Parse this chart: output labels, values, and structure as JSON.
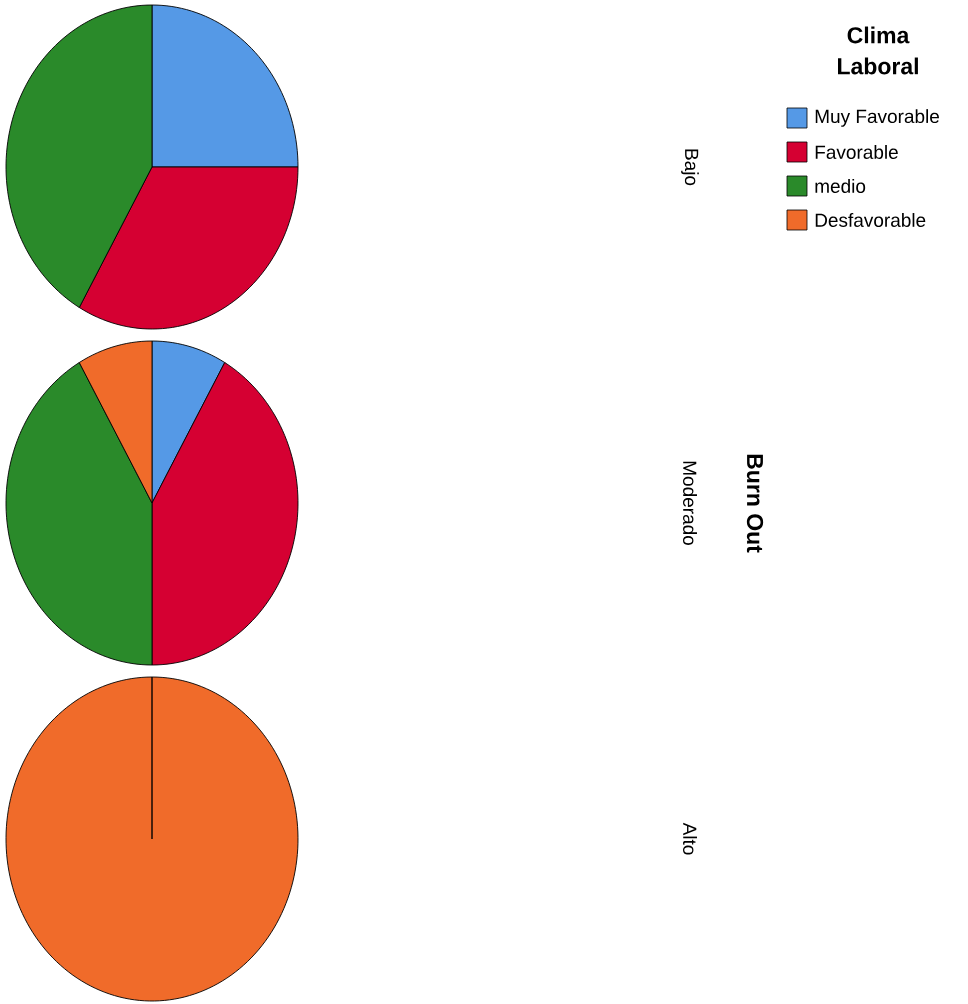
{
  "chart_data": {
    "type": "pie",
    "categories": [
      "Muy Favorable",
      "Favorable",
      "medio",
      "Desfavorable"
    ],
    "colors": [
      "#5599e6",
      "#d50032",
      "#2a8a2a",
      "#f06b2a"
    ],
    "series": [
      {
        "name": "Bajo",
        "values": [
          25,
          33.3,
          41.7,
          0
        ]
      },
      {
        "name": "Moderado",
        "values": [
          8.3,
          41.7,
          41.7,
          8.3
        ]
      },
      {
        "name": "Alto",
        "values": [
          0,
          0,
          0,
          100
        ]
      }
    ],
    "legend": "top right",
    "legend_title": "Clima Laboral",
    "ylabel": "Burn Out"
  }
}
